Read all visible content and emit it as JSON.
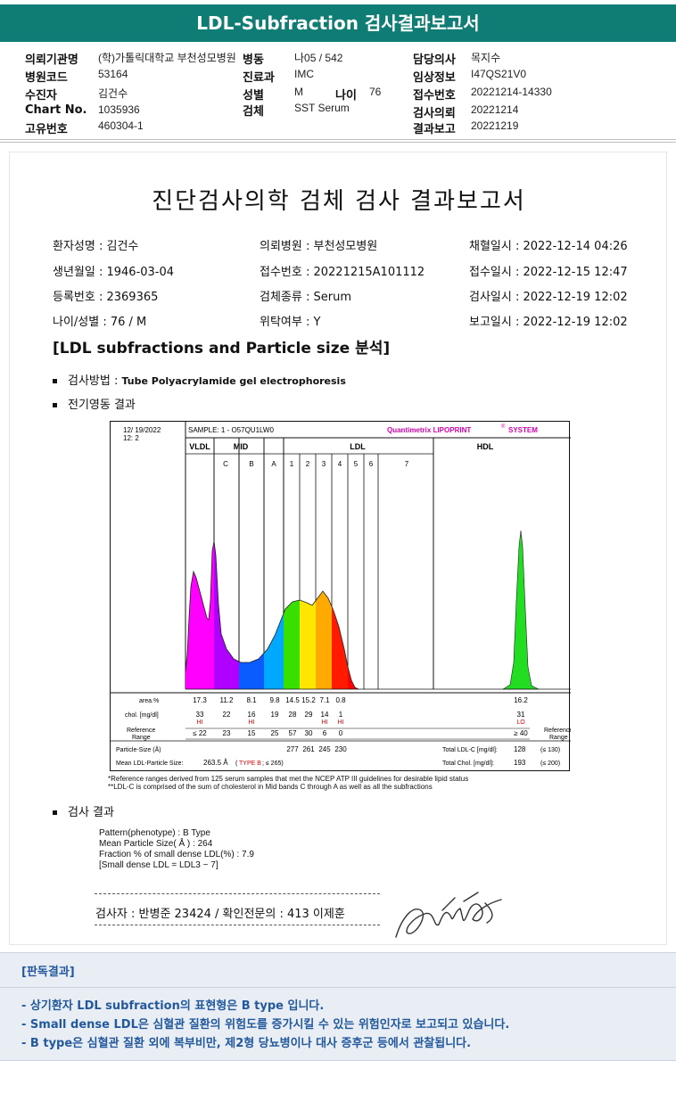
{
  "title": "LDL-Subfraction 검사결과보고서",
  "header": {
    "rows": [
      [
        {
          "label": "의뢰기관명",
          "value": "(학)가톨릭대학교 부천성모병원"
        },
        {
          "label": "병동",
          "value": "나05 / 542"
        },
        {
          "label": "담당의사",
          "value": "목지수"
        }
      ],
      [
        {
          "label": "병원코드",
          "value": "53164"
        },
        {
          "label": "진료과",
          "value": "IMC"
        },
        {
          "label": "임상정보",
          "value": "I47QS21V0"
        }
      ],
      [
        {
          "label": "수진자",
          "value": "김건수"
        },
        {
          "label": "성별",
          "value": "M"
        },
        {
          "label": "접수번호",
          "value": "20221214-14330"
        }
      ],
      [
        {
          "label": "Chart No.",
          "value": "1035936"
        },
        {
          "label": "검체",
          "value": "SST Serum"
        },
        {
          "label": "검사의뢰",
          "value": "20221214"
        }
      ],
      [
        {
          "label": "고유번호",
          "value": "460304-1"
        },
        {
          "label": "",
          "value": ""
        },
        {
          "label": "결과보고",
          "value": "20221219"
        }
      ]
    ],
    "age_label": "나이",
    "age_value": "76"
  },
  "report": {
    "title": "진단검사의학 검체 검사 결과보고서",
    "patient_info": [
      [
        "환자성명 : 김건수",
        "의뢰병원 : 부천성모병원",
        "채혈일시 : 2022-12-14 04:26"
      ],
      [
        "생년월일 : 1946-03-04",
        "접수번호 : 20221215A101112",
        "접수일시 : 2022-12-15 12:47"
      ],
      [
        "등록번호 : 2369365",
        "검체종류 : Serum",
        "검사일시 : 2022-12-19 12:02"
      ],
      [
        "나이/성별 : 76 / M",
        "위탁여부 : Y",
        "보고일시 : 2022-12-19 12:02"
      ]
    ],
    "section_heading": "[LDL subfractions and Particle size 분석]",
    "method_label": "검사방법 : ",
    "method_value": "Tube Polyacrylamide gel electrophoresis",
    "electro_label": "전기영동 결과",
    "result_label": "검사 결과",
    "results": [
      "Pattern(phenotype) : B Type",
      "Mean Particle Size( Å ) : 264",
      "Fraction % of small dense LDL(%) : 7.9",
      "[Small dense LDL = LDL3 ~ 7]"
    ],
    "signature_text": "검사자 : 반병준  23424  /  확인전문의 : 413  이제훈",
    "footnotes": [
      "*Reference ranges derived from 125 serum samples that met the NCEP ATP III guidelines for desirable lipid status",
      "**LDL-C is comprised of the sum of cholesterol in Mid bands C through A as well as all the subfractions"
    ]
  },
  "chart_data": {
    "type": "area",
    "date": "12/ 19/2022",
    "run": "12:  2",
    "sample": "SAMPLE:   1 - O57QU1LW0",
    "brand": "Quantimetrix LIPOPRINT",
    "brand_reg": "®",
    "brand_suffix": "SYSTEM",
    "regions": [
      "VLDL",
      "MID",
      "LDL",
      "HDL"
    ],
    "bands": [
      "C",
      "B",
      "A",
      "1",
      "2",
      "3",
      "4",
      "5",
      "6",
      "7"
    ],
    "band_colors": [
      "#ff00ff",
      "#b000ff",
      "#0a5cff",
      "#00a8ff",
      "#38e000",
      "#ffe600",
      "#ffaa00",
      "#ff1a00",
      "#ff0000",
      "#00dd00"
    ],
    "hdl_color": "#22dd22",
    "table": {
      "area_label": "area.%",
      "area": [
        "17.3",
        "11.2",
        "8.1",
        "9.8",
        "14.5",
        "15.2",
        "7.1",
        "0.8",
        "",
        "",
        "16.2"
      ],
      "chol_label": "chol. [mg/dl]",
      "chol": [
        "33",
        "22",
        "16",
        "19",
        "28",
        "29",
        "14",
        "1",
        "",
        "",
        "31"
      ],
      "flags": [
        "HI",
        "",
        "HI",
        "",
        "",
        "",
        "HI",
        "HI",
        "",
        "",
        "LO"
      ],
      "ref_label": "Reference Range",
      "ref": [
        "≤ 22",
        "23",
        "15",
        "25",
        "57",
        "30",
        "6",
        "0",
        "",
        "",
        "≥ 40"
      ],
      "ref_right": "Reference Range",
      "particle_label": "Particle-Size (Å)",
      "particle": [
        "277",
        "261",
        "245",
        "230"
      ],
      "total_ldl_label": "Total LDL-C [mg/dl]:",
      "total_ldl": "128",
      "total_ldl_ref": "(≤ 130)",
      "mean_label": "Mean LDL-Particle Size:",
      "mean_value": "263.5 Å",
      "mean_type_prefix": "(",
      "mean_type": "TYPE B",
      "mean_type_suffix": " ; ≤ 265)",
      "total_chol_label": "Total Chol. [mg/dl]:",
      "total_chol": "193",
      "total_chol_ref": "(≤ 200)"
    }
  },
  "interpretation": {
    "title": "[판독결과]",
    "lines": [
      "- 상기환자 LDL subfraction의 표현형은 B type 입니다.",
      "   -  Small dense LDL은 심혈관 질환의 위험도를 증가시킬 수 있는 위험인자로 보고되고 있습니다.",
      "   -  B type은 심혈관 질환 외에 복부비만, 제2형 당뇨병이나 대사 증후군 등에서 관찰됩니다."
    ]
  }
}
